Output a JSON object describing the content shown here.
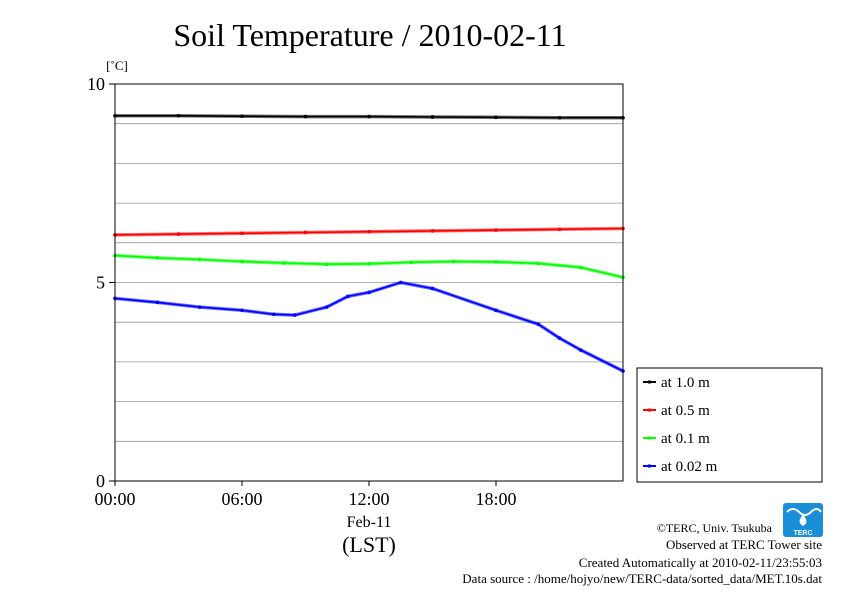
{
  "chart_data": {
    "type": "line",
    "title": "Soil Temperature / 2010-02-11",
    "ylabel": "[˚C]",
    "xlabel": "(LST)",
    "x_date_label": "Feb-11",
    "ylim": [
      0,
      10
    ],
    "xlim": [
      "00:00",
      "24:00"
    ],
    "y_ticks": [
      "0",
      "5",
      "10"
    ],
    "x_ticks": [
      "00:00",
      "06:00",
      "12:00",
      "18:00"
    ],
    "grid": true,
    "legend_position": "right-bottom",
    "series": [
      {
        "name": "at 1.0 m",
        "color": "#000000",
        "x": [
          "00:00",
          "03:00",
          "06:00",
          "09:00",
          "12:00",
          "15:00",
          "18:00",
          "21:00",
          "24:00"
        ],
        "y": [
          9.2,
          9.2,
          9.19,
          9.18,
          9.18,
          9.17,
          9.16,
          9.15,
          9.15
        ]
      },
      {
        "name": "at 0.5 m",
        "color": "#ff0000",
        "x": [
          "00:00",
          "03:00",
          "06:00",
          "09:00",
          "12:00",
          "15:00",
          "18:00",
          "21:00",
          "24:00"
        ],
        "y": [
          6.2,
          6.22,
          6.24,
          6.26,
          6.28,
          6.3,
          6.32,
          6.34,
          6.36
        ]
      },
      {
        "name": "at 0.1 m",
        "color": "#00ff00",
        "x": [
          "00:00",
          "02:00",
          "04:00",
          "06:00",
          "08:00",
          "10:00",
          "12:00",
          "14:00",
          "16:00",
          "18:00",
          "20:00",
          "22:00",
          "24:00"
        ],
        "y": [
          5.68,
          5.62,
          5.58,
          5.53,
          5.49,
          5.46,
          5.47,
          5.51,
          5.53,
          5.52,
          5.48,
          5.38,
          5.13
        ]
      },
      {
        "name": "at 0.02 m",
        "color": "#0000ff",
        "x": [
          "00:00",
          "02:00",
          "04:00",
          "06:00",
          "07:30",
          "08:30",
          "10:00",
          "11:00",
          "12:00",
          "13:30",
          "15:00",
          "18:00",
          "20:00",
          "21:00",
          "22:00",
          "24:00"
        ],
        "y": [
          4.6,
          4.5,
          4.38,
          4.3,
          4.2,
          4.18,
          4.38,
          4.65,
          4.75,
          5.0,
          4.85,
          4.3,
          3.95,
          3.6,
          3.3,
          2.77
        ]
      }
    ]
  },
  "footer": {
    "credit": "©TERC, Univ. Tsukuba",
    "observed": "Observed at TERC Tower site",
    "created": "Created Automatically at 2010-02-11/23:55:03",
    "source": "Data source : /home/hojyo/new/TERC-data/sorted_data/MET.10s.dat"
  },
  "logo": {
    "text": "TERC",
    "color": "#1a8fd8"
  }
}
